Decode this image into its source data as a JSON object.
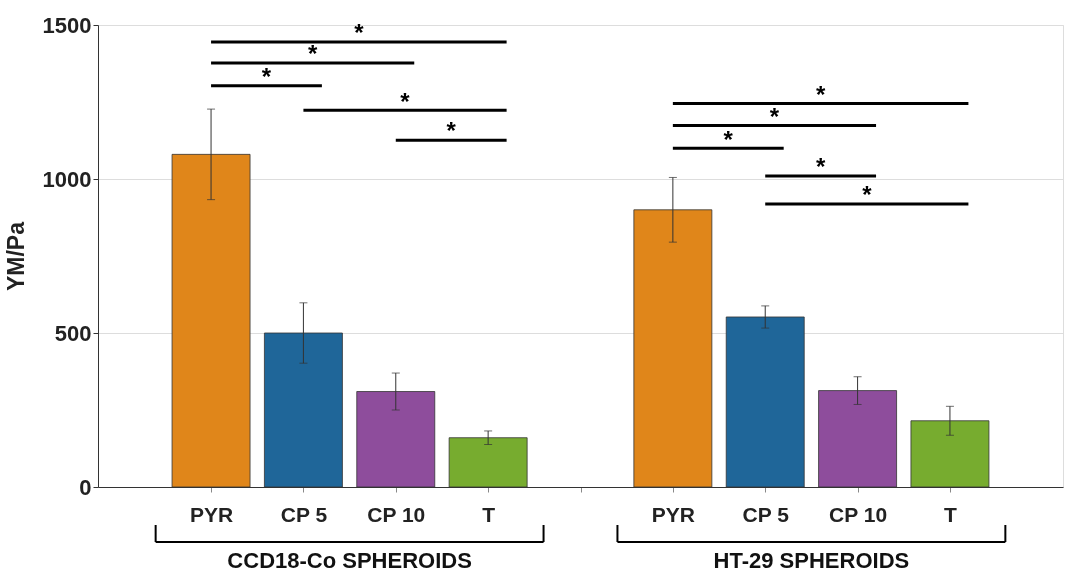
{
  "chart_data": {
    "type": "bar",
    "ylabel": "YM/Pa",
    "categories": [
      "PYR",
      "CP 5",
      "CP 10",
      "T",
      null,
      "PYR",
      "CP 5",
      "CP 10",
      "T"
    ],
    "values": [
      1080,
      500,
      310,
      160,
      null,
      900,
      552,
      313,
      215
    ],
    "errors": [
      147,
      98,
      60,
      22,
      null,
      105,
      36,
      45,
      47
    ],
    "colors": [
      "#e0861a",
      "#1f6699",
      "#8e4d9c",
      "#77ac2f",
      null,
      "#e0861a",
      "#1f6699",
      "#8e4d9c",
      "#77ac2f"
    ],
    "ylim": [
      0,
      1500
    ],
    "yticks": [
      0,
      500,
      1000,
      1500
    ],
    "grid": "y",
    "annotations": [
      "*",
      "*",
      "*",
      "*",
      "*",
      "*",
      "*",
      "*",
      "*",
      "*",
      "CCD18-Co SPHEROIDS",
      "HT-29 SPHEROIDS"
    ]
  }
}
